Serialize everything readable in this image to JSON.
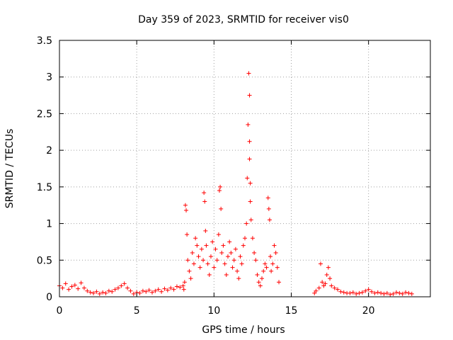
{
  "chart_data": {
    "type": "scatter",
    "title": "Day 359 of 2023, SRMTID for receiver vis0",
    "xlabel": "GPS time / hours",
    "ylabel": "SRMTID / TECUs",
    "xlim": [
      0,
      24
    ],
    "ylim": [
      0,
      3.5
    ],
    "grid": true,
    "marker": "plus",
    "xticks": [
      0,
      5,
      10,
      15,
      20
    ],
    "xtick_labels": [
      "0",
      "5",
      "10",
      "15",
      "20"
    ],
    "yticks": [
      0,
      0.5,
      1,
      1.5,
      2,
      2.5,
      3,
      3.5
    ],
    "ytick_labels": [
      "0",
      "0.5",
      "1",
      "1.5",
      "2",
      "2.5",
      "3",
      "3.5"
    ],
    "series": [
      {
        "name": "vis0",
        "color": "#ff0000",
        "x": [
          0.0,
          0.2,
          0.4,
          0.6,
          0.8,
          1.0,
          1.2,
          1.4,
          1.6,
          1.8,
          2.0,
          2.2,
          2.4,
          2.6,
          2.8,
          3.0,
          3.2,
          3.4,
          3.6,
          3.8,
          4.0,
          4.2,
          4.4,
          4.6,
          4.8,
          5.0,
          5.2,
          5.4,
          5.6,
          5.8,
          6.0,
          6.2,
          6.4,
          6.6,
          6.8,
          7.0,
          7.2,
          7.4,
          7.6,
          7.8,
          8.0,
          8.05,
          8.1,
          8.15,
          8.2,
          8.25,
          8.3,
          8.4,
          8.5,
          8.6,
          8.7,
          8.8,
          8.9,
          9.0,
          9.1,
          9.2,
          9.3,
          9.35,
          9.4,
          9.45,
          9.5,
          9.6,
          9.7,
          9.8,
          9.9,
          10.0,
          10.1,
          10.2,
          10.3,
          10.35,
          10.4,
          10.45,
          10.5,
          10.6,
          10.7,
          10.8,
          10.9,
          11.0,
          11.1,
          11.2,
          11.3,
          11.4,
          11.5,
          11.6,
          11.7,
          11.8,
          11.9,
          12.0,
          12.1,
          12.15,
          12.2,
          12.25,
          12.3,
          12.3,
          12.3,
          12.35,
          12.35,
          12.4,
          12.5,
          12.6,
          12.7,
          12.8,
          12.9,
          13.0,
          13.1,
          13.2,
          13.3,
          13.4,
          13.5,
          13.55,
          13.6,
          13.65,
          13.7,
          13.8,
          13.9,
          14.0,
          14.1,
          14.2,
          16.5,
          16.6,
          16.8,
          16.9,
          17.0,
          17.1,
          17.2,
          17.3,
          17.4,
          17.5,
          17.6,
          17.8,
          18.0,
          18.2,
          18.4,
          18.6,
          18.8,
          19.0,
          19.2,
          19.4,
          19.6,
          19.8,
          20.0,
          20.2,
          20.4,
          20.6,
          20.8,
          21.0,
          21.2,
          21.4,
          21.6,
          21.8,
          22.0,
          22.2,
          22.4,
          22.6,
          22.8
        ],
        "y": [
          0.15,
          0.12,
          0.18,
          0.1,
          0.14,
          0.16,
          0.11,
          0.19,
          0.12,
          0.08,
          0.06,
          0.05,
          0.07,
          0.04,
          0.06,
          0.05,
          0.08,
          0.07,
          0.1,
          0.12,
          0.15,
          0.18,
          0.12,
          0.08,
          0.04,
          0.06,
          0.05,
          0.08,
          0.07,
          0.09,
          0.06,
          0.08,
          0.1,
          0.07,
          0.11,
          0.09,
          0.12,
          0.1,
          0.14,
          0.13,
          0.15,
          0.1,
          0.2,
          1.25,
          1.18,
          0.85,
          0.5,
          0.35,
          0.25,
          0.6,
          0.45,
          0.8,
          0.7,
          0.55,
          0.4,
          0.65,
          0.5,
          1.42,
          1.3,
          0.9,
          0.7,
          0.45,
          0.3,
          0.55,
          0.75,
          0.4,
          0.65,
          0.5,
          0.85,
          1.45,
          1.5,
          1.2,
          0.6,
          0.7,
          0.45,
          0.3,
          0.55,
          0.75,
          0.6,
          0.4,
          0.5,
          0.65,
          0.35,
          0.25,
          0.55,
          0.45,
          0.7,
          0.8,
          1.0,
          1.62,
          2.35,
          3.05,
          2.75,
          2.12,
          1.88,
          1.55,
          1.3,
          1.05,
          0.8,
          0.6,
          0.5,
          0.3,
          0.2,
          0.15,
          0.25,
          0.35,
          0.45,
          0.4,
          1.35,
          1.2,
          1.05,
          0.55,
          0.35,
          0.45,
          0.7,
          0.6,
          0.4,
          0.2,
          0.05,
          0.08,
          0.12,
          0.45,
          0.2,
          0.15,
          0.18,
          0.3,
          0.4,
          0.25,
          0.15,
          0.12,
          0.1,
          0.07,
          0.06,
          0.05,
          0.05,
          0.06,
          0.04,
          0.05,
          0.06,
          0.08,
          0.1,
          0.07,
          0.05,
          0.06,
          0.05,
          0.04,
          0.05,
          0.03,
          0.04,
          0.06,
          0.05,
          0.04,
          0.06,
          0.05,
          0.04
        ]
      }
    ]
  }
}
